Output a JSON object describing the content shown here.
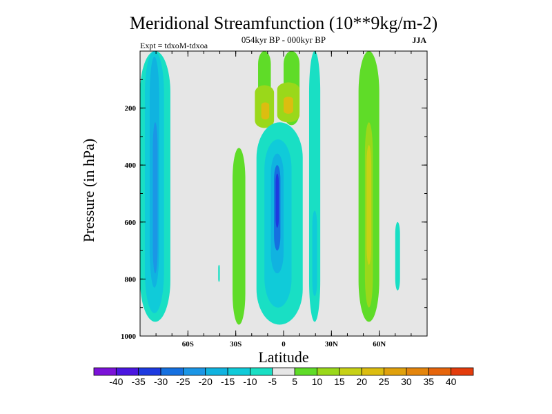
{
  "chart_data": {
    "type": "heatmap",
    "title": "Meridional Streamfunction (10**9kg/m-2)",
    "subtitle": "054kyr BP - 000kyr BP",
    "left_label": "Expt = tdxoM-tdxoa",
    "right_label": "JJA",
    "xlabel": "Latitude",
    "ylabel": "Pressure (in hPa)",
    "xlim": [
      -90,
      90
    ],
    "ylim": [
      1000,
      0
    ],
    "x_ticks": [
      {
        "value": -60,
        "label": "60S"
      },
      {
        "value": -30,
        "label": "30S"
      },
      {
        "value": 0,
        "label": "0"
      },
      {
        "value": 30,
        "label": "30N"
      },
      {
        "value": 60,
        "label": "60N"
      }
    ],
    "y_ticks": [
      {
        "value": 200,
        "label": "200"
      },
      {
        "value": 400,
        "label": "400"
      },
      {
        "value": 600,
        "label": "600"
      },
      {
        "value": 800,
        "label": "800"
      },
      {
        "value": 1000,
        "label": "1000"
      }
    ],
    "colorbar": {
      "colors": [
        "#7b12d8",
        "#4a16e0",
        "#1d3ae0",
        "#1570e0",
        "#1b96e6",
        "#10b3e0",
        "#10cbd9",
        "#19dfc4",
        "#e6e6e6",
        "#5fdc28",
        "#9ad81a",
        "#c7d116",
        "#dcbd10",
        "#e0a10c",
        "#e4850c",
        "#e6650c",
        "#e43c0c"
      ],
      "labels": [
        "-40",
        "-35",
        "-30",
        "-25",
        "-20",
        "-15",
        "-10",
        "-5",
        "5",
        "10",
        "15",
        "20",
        "25",
        "30",
        "35",
        "40"
      ],
      "level_values": [
        -40,
        -35,
        -30,
        -25,
        -20,
        -15,
        -10,
        -5,
        5,
        10,
        15,
        20,
        25,
        30,
        35,
        40
      ]
    },
    "regions": [
      {
        "name": "neg-60S-outer",
        "lat": [
          -90,
          -71
        ],
        "p": [
          0,
          950
        ],
        "value": -10
      },
      {
        "name": "neg-60S-mid",
        "lat": [
          -87,
          -75
        ],
        "p": [
          0,
          920
        ],
        "value": -15
      },
      {
        "name": "neg-60S-core",
        "lat": [
          -84,
          -78
        ],
        "p": [
          20,
          830
        ],
        "value": -20
      },
      {
        "name": "neg-60S-deep",
        "lat": [
          -82,
          -79
        ],
        "p": [
          250,
          780
        ],
        "value": -25
      },
      {
        "name": "pos-sh-subtrop",
        "lat": [
          -32,
          -24
        ],
        "p": [
          340,
          960
        ],
        "value": 5
      },
      {
        "name": "pos-upper-left",
        "lat": [
          -16,
          -8
        ],
        "p": [
          0,
          260
        ],
        "value": 5
      },
      {
        "name": "pos-upper-right",
        "lat": [
          0,
          10
        ],
        "p": [
          0,
          260
        ],
        "value": 5
      },
      {
        "name": "pos-upper-lobe-w",
        "lat": [
          -18,
          -6
        ],
        "p": [
          120,
          270
        ],
        "value": 10
      },
      {
        "name": "pos-upper-lobe-e",
        "lat": [
          -4,
          10
        ],
        "p": [
          110,
          250
        ],
        "value": 10
      },
      {
        "name": "pos-upper-core-w",
        "lat": [
          -14,
          -9
        ],
        "p": [
          180,
          240
        ],
        "value": 20
      },
      {
        "name": "pos-upper-core-e",
        "lat": [
          0,
          6
        ],
        "p": [
          160,
          220
        ],
        "value": 20
      },
      {
        "name": "neg-eq-outer",
        "lat": [
          -17,
          12
        ],
        "p": [
          250,
          960
        ],
        "value": -10
      },
      {
        "name": "neg-eq-mid",
        "lat": [
          -12,
          5
        ],
        "p": [
          310,
          900
        ],
        "value": -15
      },
      {
        "name": "neg-eq-core",
        "lat": [
          -8,
          0
        ],
        "p": [
          360,
          780
        ],
        "value": -20
      },
      {
        "name": "neg-eq-deep",
        "lat": [
          -6,
          -2
        ],
        "p": [
          400,
          700
        ],
        "value": -30
      },
      {
        "name": "neg-eq-center",
        "lat": [
          -5,
          -3
        ],
        "p": [
          430,
          620
        ],
        "value": -35
      },
      {
        "name": "neg-nh-tropic",
        "lat": [
          16,
          23
        ],
        "p": [
          0,
          950
        ],
        "value": -10
      },
      {
        "name": "neg-nh-tropic-core",
        "lat": [
          18,
          21
        ],
        "p": [
          560,
          860
        ],
        "value": -15
      },
      {
        "name": "pos-nh-midlat",
        "lat": [
          47,
          60
        ],
        "p": [
          0,
          950
        ],
        "value": 5
      },
      {
        "name": "pos-nh-midlat-core",
        "lat": [
          51,
          56
        ],
        "p": [
          250,
          900
        ],
        "value": 10
      },
      {
        "name": "pos-nh-midlat-peak",
        "lat": [
          52,
          55
        ],
        "p": [
          330,
          750
        ],
        "value": 15
      },
      {
        "name": "neg-nh-strip",
        "lat": [
          70,
          73
        ],
        "p": [
          600,
          840
        ],
        "value": -10
      },
      {
        "name": "neg-sh-dot",
        "lat": [
          -41,
          -40
        ],
        "p": [
          750,
          810
        ],
        "value": -10
      }
    ]
  }
}
